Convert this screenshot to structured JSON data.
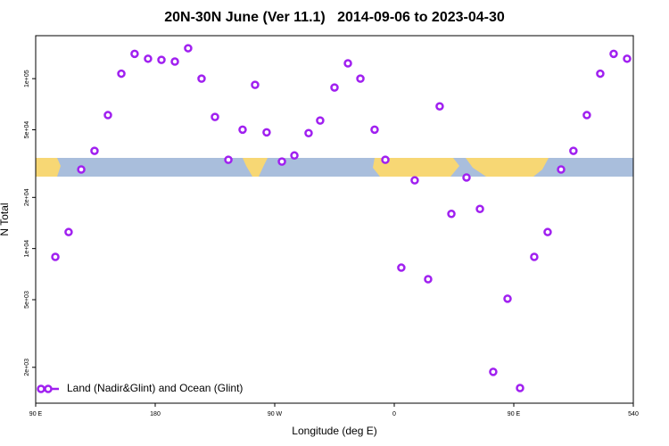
{
  "chart_data": {
    "type": "scatter",
    "title": "20N-30N June (Ver 11.1)   2014-09-06 to 2023-04-30",
    "x_label": "Longitude (deg E)",
    "y_label": "N Total",
    "log_y": true,
    "legend": "bottom-left",
    "xlim": [
      90,
      540
    ],
    "ylim": [
      1230,
      179000
    ],
    "xticks": [
      {
        "value": 90,
        "label": "90 E"
      },
      180,
      {
        "value": 270,
        "label": "90 W"
      },
      0,
      {
        "value": 450,
        "label": "90 E"
      },
      540
    ],
    "yticks": [
      {
        "value": 2000,
        "label": "2e+03"
      },
      {
        "value": 5000,
        "label": "5e+03"
      },
      {
        "value": 10000,
        "label": "1e+04"
      },
      {
        "value": 20000,
        "label": "2e+04"
      },
      {
        "value": 50000,
        "label": "5e+04"
      },
      {
        "value": 100000,
        "label": "1e+05"
      }
    ],
    "series": [
      {
        "name": "Land (Nadir&Glint) and Ocean (Glint)",
        "color": "#a020f0",
        "x": [
          104.8,
          114.8,
          124.3,
          134.3,
          144.4,
          154.5,
          164.5,
          174.6,
          184.7,
          194.8,
          204.8,
          214.9,
          225.0,
          235.1,
          245.8,
          255.2,
          263.9,
          275.4,
          284.8,
          295.5,
          304.2,
          315.0,
          325.1,
          334.5,
          345.2,
          353.3,
          365.3,
          375.4,
          385.5,
          394.2,
          403.0,
          414.4,
          424.5,
          434.5,
          445.3,
          454.7,
          465.4,
          475.5,
          485.6,
          494.9,
          505.0,
          515.1,
          525.2,
          535.3
        ],
        "values": [
          8930,
          12500,
          29200,
          37600,
          61000,
          107000,
          140000,
          131000,
          129000,
          126000,
          151000,
          100000,
          59500,
          33300,
          50100,
          91900,
          48300,
          32500,
          35300,
          47800,
          56700,
          88700,
          123000,
          100000,
          50100,
          33300,
          7720,
          25200,
          6600,
          68700,
          16000,
          26200,
          17100,
          1880,
          5070,
          1510,
          8930,
          12500,
          29200,
          37600,
          61000,
          107000,
          140000,
          131000
        ]
      }
    ]
  }
}
